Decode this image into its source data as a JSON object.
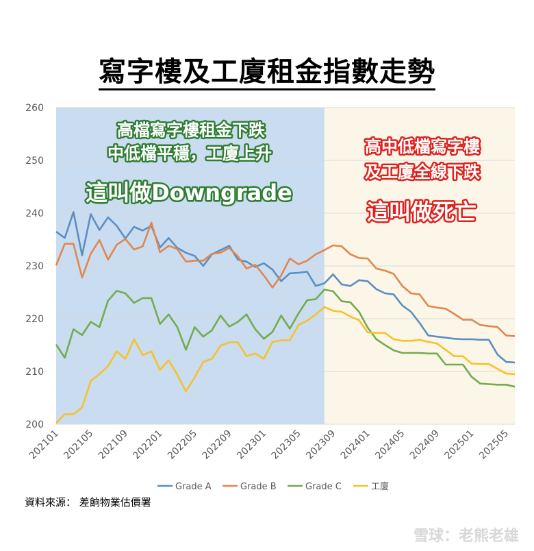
{
  "chart_data": {
    "type": "line",
    "title": "寫字樓及工廈租金指數走勢",
    "xlabel": "",
    "ylabel": "",
    "ylim": [
      200,
      260
    ],
    "yticks": [
      200,
      210,
      220,
      230,
      240,
      250,
      260
    ],
    "x_tick_labels": [
      "202101",
      "202105",
      "202109",
      "202201",
      "202205",
      "202209",
      "202301",
      "202305",
      "202309",
      "202401",
      "202405",
      "202409",
      "202501",
      "202505"
    ],
    "x": [
      "202101",
      "202102",
      "202103",
      "202104",
      "202105",
      "202106",
      "202107",
      "202108",
      "202109",
      "202110",
      "202111",
      "202112",
      "202201",
      "202202",
      "202203",
      "202204",
      "202205",
      "202206",
      "202207",
      "202208",
      "202209",
      "202210",
      "202211",
      "202212",
      "202301",
      "202302",
      "202303",
      "202304",
      "202305",
      "202306",
      "202307",
      "202308",
      "202309",
      "202310",
      "202311",
      "202312",
      "202401",
      "202402",
      "202403",
      "202404",
      "202405",
      "202406",
      "202407",
      "202408",
      "202409",
      "202410",
      "202411",
      "202412",
      "202501",
      "202502",
      "202503",
      "202504",
      "202505",
      "202506"
    ],
    "series": [
      {
        "name": "Grade A",
        "color": "#5b8ec2",
        "values": [
          236.5,
          235.3,
          240.2,
          232.0,
          239.8,
          236.8,
          239.2,
          237.6,
          235.2,
          237.4,
          236.7,
          237.6,
          233.5,
          235.3,
          233.4,
          232.5,
          231.9,
          230.0,
          232.2,
          233.0,
          233.8,
          231.2,
          230.8,
          229.8,
          230.5,
          229.3,
          227.1,
          228.6,
          228.7,
          228.9,
          226.2,
          226.7,
          228.4,
          226.5,
          226.2,
          227.3,
          227.1,
          225.6,
          224.8,
          224.6,
          222.5,
          221.3,
          219.2,
          216.8,
          216.6,
          216.4,
          216.2,
          216.1,
          216.1,
          216.0,
          216.0,
          213.2,
          211.8,
          211.7
        ]
      },
      {
        "name": "Grade B",
        "color": "#e0874f",
        "values": [
          230.1,
          234.2,
          234.2,
          227.8,
          232.3,
          234.9,
          231.2,
          234.0,
          235.1,
          233.1,
          233.7,
          238.2,
          232.6,
          233.8,
          233.2,
          230.8,
          231.0,
          231.0,
          232.3,
          232.5,
          233.4,
          231.8,
          229.5,
          230.2,
          228.2,
          225.9,
          228.2,
          231.4,
          230.3,
          231.0,
          232.2,
          233.0,
          233.9,
          233.7,
          232.2,
          231.5,
          231.4,
          229.5,
          229.1,
          228.5,
          226.2,
          224.8,
          224.6,
          222.4,
          222.1,
          221.9,
          220.9,
          219.8,
          219.8,
          218.8,
          218.6,
          218.4,
          216.8,
          216.7
        ]
      },
      {
        "name": "Grade C",
        "color": "#72ac4d",
        "values": [
          215.1,
          212.6,
          218.0,
          216.9,
          219.4,
          218.4,
          223.4,
          225.3,
          224.8,
          223.0,
          223.9,
          223.9,
          219.0,
          220.8,
          218.4,
          214.1,
          218.4,
          216.6,
          217.8,
          220.6,
          218.5,
          219.4,
          220.8,
          218.0,
          216.2,
          217.5,
          220.6,
          218.1,
          221.0,
          223.5,
          223.7,
          225.5,
          225.2,
          223.3,
          223.1,
          221.3,
          218.3,
          216.1,
          215.0,
          214.0,
          213.5,
          213.5,
          213.5,
          213.4,
          213.4,
          211.3,
          211.3,
          211.3,
          209.0,
          207.7,
          207.6,
          207.5,
          207.5,
          207.1
        ]
      },
      {
        "name": "工廈",
        "color": "#f5c22b",
        "values": [
          200.2,
          201.9,
          201.9,
          203.2,
          208.2,
          209.5,
          211.0,
          213.8,
          212.4,
          216.1,
          213.1,
          213.8,
          210.3,
          212.1,
          209.4,
          206.2,
          208.9,
          211.8,
          212.4,
          214.9,
          215.5,
          215.5,
          212.9,
          213.4,
          212.4,
          215.6,
          215.9,
          215.9,
          218.8,
          219.6,
          220.8,
          222.2,
          221.5,
          221.3,
          220.4,
          219.7,
          217.4,
          217.3,
          217.3,
          216.1,
          215.8,
          215.8,
          216.0,
          215.6,
          215.3,
          214.1,
          212.9,
          212.9,
          211.5,
          211.4,
          211.4,
          210.5,
          209.6,
          209.5
        ]
      }
    ],
    "shaded_regions": [
      {
        "name": "downgrade-period",
        "from": "202101",
        "to": "202308",
        "color": "#c9dcf0"
      },
      {
        "name": "decline-period",
        "from": "202308",
        "to": "202506",
        "color": "#fbf6e8"
      }
    ],
    "annotations": {
      "left": {
        "line1": "高檔寫字樓租金下跌",
        "line2": "中低檔平穩，工廈上升",
        "line3": "這叫做Downgrade"
      },
      "right": {
        "line1": "高中低檔寫字樓",
        "line2": "及工廈全線下跌",
        "line3": "這叫做死亡"
      }
    },
    "legend_position": "bottom"
  },
  "footer": {
    "source": "資料來源：  差餉物業估價署",
    "watermark": "雪球：老熊老雄"
  }
}
